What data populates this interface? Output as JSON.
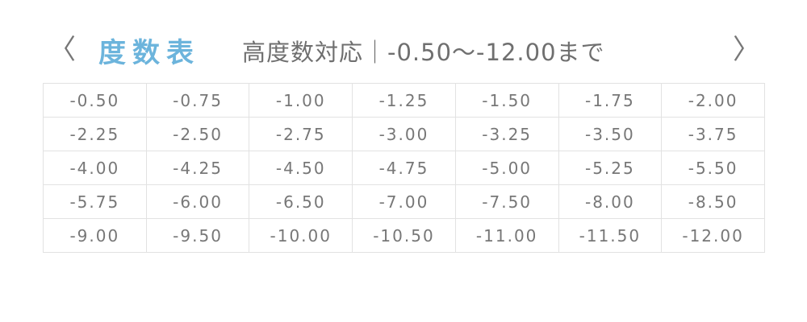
{
  "header": {
    "prev_icon": "‹",
    "title": "度数表",
    "subtitle": "高度数対応｜-0.50〜-12.00まで",
    "next_icon": "›",
    "accent_color": "#6cb4dc"
  },
  "table": {
    "rows": [
      [
        "-0.50",
        "-0.75",
        "-1.00",
        "-1.25",
        "-1.50",
        "-1.75",
        "-2.00"
      ],
      [
        "-2.25",
        "-2.50",
        "-2.75",
        "-3.00",
        "-3.25",
        "-3.50",
        "-3.75"
      ],
      [
        "-4.00",
        "-4.25",
        "-4.50",
        "-4.75",
        "-5.00",
        "-5.25",
        "-5.50"
      ],
      [
        "-5.75",
        "-6.00",
        "-6.50",
        "-7.00",
        "-7.50",
        "-8.00",
        "-8.50"
      ],
      [
        "-9.00",
        "-9.50",
        "-10.00",
        "-10.50",
        "-11.00",
        "-11.50",
        "-12.00"
      ]
    ]
  }
}
